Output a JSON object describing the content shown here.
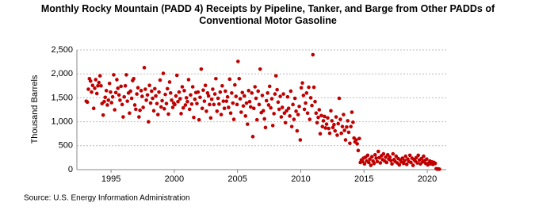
{
  "chart_data": {
    "type": "scatter",
    "title": "Monthly Rocky Mountain (PADD 4) Receipts by Pipeline, Tanker, and Barge from Other PADDs of Conventional Motor Gasoline",
    "y_label": "Thousand Barrels",
    "source": "Source: U.S. Energy Information Administration",
    "xlim": [
      1992.3,
      2021.5
    ],
    "xticks": [
      1995,
      2000,
      2005,
      2010,
      2015,
      2020
    ],
    "ylim": [
      0,
      2500
    ],
    "yticks": [
      0,
      500,
      {
        "value": 1000,
        "label": "1,000"
      },
      {
        "value": 1500,
        "label": "1,500"
      },
      {
        "value": 2000,
        "label": "2,000"
      },
      {
        "value": 2500,
        "label": "2,500"
      }
    ],
    "grid": true,
    "color": "#c00000",
    "x": [
      1993.04,
      1993.13,
      1993.21,
      1993.29,
      1993.38,
      1993.46,
      1993.54,
      1993.63,
      1993.71,
      1993.79,
      1993.88,
      1993.96,
      1994.04,
      1994.13,
      1994.21,
      1994.29,
      1994.38,
      1994.46,
      1994.54,
      1994.63,
      1994.71,
      1994.79,
      1994.88,
      1994.96,
      1995.04,
      1995.13,
      1995.21,
      1995.29,
      1995.38,
      1995.46,
      1995.54,
      1995.63,
      1995.71,
      1995.79,
      1995.88,
      1995.96,
      1996.04,
      1996.13,
      1996.21,
      1996.29,
      1996.38,
      1996.46,
      1996.54,
      1996.63,
      1996.71,
      1996.79,
      1996.88,
      1996.96,
      1997.04,
      1997.13,
      1997.21,
      1997.29,
      1997.38,
      1997.46,
      1997.54,
      1997.63,
      1997.71,
      1997.79,
      1997.88,
      1997.96,
      1998.04,
      1998.13,
      1998.21,
      1998.29,
      1998.38,
      1998.46,
      1998.54,
      1998.63,
      1998.71,
      1998.79,
      1998.88,
      1998.96,
      1999.04,
      1999.13,
      1999.21,
      1999.29,
      1999.38,
      1999.46,
      1999.54,
      1999.63,
      1999.71,
      1999.79,
      1999.88,
      1999.96,
      2000.04,
      2000.13,
      2000.21,
      2000.29,
      2000.38,
      2000.46,
      2000.54,
      2000.63,
      2000.71,
      2000.79,
      2000.88,
      2000.96,
      2001.04,
      2001.13,
      2001.21,
      2001.29,
      2001.38,
      2001.46,
      2001.54,
      2001.63,
      2001.71,
      2001.79,
      2001.88,
      2001.96,
      2002.04,
      2002.13,
      2002.21,
      2002.29,
      2002.38,
      2002.46,
      2002.54,
      2002.63,
      2002.71,
      2002.79,
      2002.88,
      2002.96,
      2003.04,
      2003.13,
      2003.21,
      2003.29,
      2003.38,
      2003.46,
      2003.54,
      2003.63,
      2003.71,
      2003.79,
      2003.88,
      2003.96,
      2004.04,
      2004.13,
      2004.21,
      2004.29,
      2004.38,
      2004.46,
      2004.54,
      2004.63,
      2004.71,
      2004.79,
      2004.88,
      2004.96,
      2005.04,
      2005.13,
      2005.21,
      2005.29,
      2005.38,
      2005.46,
      2005.54,
      2005.63,
      2005.71,
      2005.79,
      2005.88,
      2005.96,
      2006.04,
      2006.13,
      2006.21,
      2006.29,
      2006.38,
      2006.46,
      2006.54,
      2006.63,
      2006.71,
      2006.79,
      2006.88,
      2006.96,
      2007.04,
      2007.13,
      2007.21,
      2007.29,
      2007.38,
      2007.46,
      2007.54,
      2007.63,
      2007.71,
      2007.79,
      2007.88,
      2007.96,
      2008.04,
      2008.13,
      2008.21,
      2008.29,
      2008.38,
      2008.46,
      2008.54,
      2008.63,
      2008.71,
      2008.79,
      2008.88,
      2008.96,
      2009.04,
      2009.13,
      2009.21,
      2009.29,
      2009.38,
      2009.46,
      2009.54,
      2009.63,
      2009.71,
      2009.79,
      2009.88,
      2009.96,
      2010.04,
      2010.13,
      2010.21,
      2010.29,
      2010.38,
      2010.46,
      2010.54,
      2010.63,
      2010.71,
      2010.79,
      2010.88,
      2010.96,
      2011.04,
      2011.13,
      2011.21,
      2011.29,
      2011.38,
      2011.46,
      2011.54,
      2011.63,
      2011.71,
      2011.79,
      2011.88,
      2011.96,
      2012.04,
      2012.13,
      2012.21,
      2012.29,
      2012.38,
      2012.46,
      2012.54,
      2012.63,
      2012.71,
      2012.79,
      2012.88,
      2012.96,
      2013.04,
      2013.13,
      2013.21,
      2013.29,
      2013.38,
      2013.46,
      2013.54,
      2013.63,
      2013.71,
      2013.79,
      2013.88,
      2013.96,
      2014.04,
      2014.13,
      2014.21,
      2014.29,
      2014.38,
      2014.46,
      2014.54,
      2014.63,
      2014.71,
      2014.79,
      2014.88,
      2014.96,
      2015.04,
      2015.13,
      2015.21,
      2015.29,
      2015.38,
      2015.46,
      2015.54,
      2015.63,
      2015.71,
      2015.79,
      2015.88,
      2015.96,
      2016.04,
      2016.13,
      2016.21,
      2016.29,
      2016.38,
      2016.46,
      2016.54,
      2016.63,
      2016.71,
      2016.79,
      2016.88,
      2016.96,
      2017.04,
      2017.13,
      2017.21,
      2017.29,
      2017.38,
      2017.46,
      2017.54,
      2017.63,
      2017.71,
      2017.79,
      2017.88,
      2017.96,
      2018.04,
      2018.13,
      2018.21,
      2018.29,
      2018.38,
      2018.46,
      2018.54,
      2018.63,
      2018.71,
      2018.79,
      2018.88,
      2018.96,
      2019.04,
      2019.13,
      2019.21,
      2019.29,
      2019.38,
      2019.46,
      2019.54,
      2019.63,
      2019.71,
      2019.79,
      2019.88,
      2019.96,
      2020.04,
      2020.13,
      2020.21,
      2020.29,
      2020.38,
      2020.46,
      2020.54,
      2020.63,
      2020.71,
      2020.79,
      2020.88,
      2020.96
    ],
    "values": [
      1430,
      1410,
      1680,
      1900,
      1850,
      1620,
      1760,
      1280,
      1700,
      1880,
      1590,
      1750,
      1820,
      1960,
      1750,
      1380,
      1140,
      1420,
      1510,
      1650,
      1350,
      1450,
      1800,
      1620,
      1400,
      1520,
      1980,
      1250,
      1610,
      1880,
      1700,
      1560,
      1450,
      1740,
      1360,
      1100,
      1520,
      1750,
      1980,
      1430,
      1600,
      1180,
      1640,
      1490,
      1860,
      1900,
      1350,
      1260,
      1580,
      1710,
      1100,
      1240,
      1650,
      1530,
      1300,
      2130,
      1680,
      1450,
      1560,
      1000,
      1760,
      1390,
      1640,
      1490,
      1230,
      1690,
      1540,
      1380,
      1150,
      1620,
      1870,
      1310,
      1440,
      2010,
      1270,
      1570,
      1380,
      1690,
      1160,
      1830,
      1600,
      1450,
      1300,
      1390,
      1360,
      1540,
      1970,
      1420,
      1620,
      1480,
      1170,
      1730,
      1290,
      1650,
      1350,
      1500,
      1420,
      1880,
      1260,
      1560,
      1370,
      1730,
      1090,
      1470,
      1610,
      1380,
      1620,
      1040,
      1510,
      2100,
      1280,
      1660,
      1430,
      1760,
      1220,
      1600,
      1540,
      1360,
      1080,
      1470,
      1680,
      1360,
      1580,
      1900,
      1220,
      1490,
      1370,
      1620,
      1150,
      1750,
      1430,
      1280,
      1640,
      1430,
      1520,
      1300,
      1890,
      1180,
      1600,
      1390,
      1050,
      1770,
      1530,
      1360,
      2260,
      1900,
      1480,
      1200,
      1610,
      1330,
      1540,
      1120,
      1390,
      950,
      1650,
      1420,
      1310,
      1600,
      690,
      1280,
      1730,
      1490,
      1040,
      1640,
      1360,
      2100,
      1190,
      1550,
      1230,
      1060,
      880,
      1440,
      1600,
      1350,
      1740,
      1290,
      1480,
      920,
      1170,
      1580,
      1960,
      1670,
      1410,
      1260,
      1530,
      1100,
      1300,
      1580,
      1180,
      980,
      1230,
      1520,
      1280,
      1120,
      1640,
      900,
      1360,
      1050,
      1490,
      1220,
      810,
      1150,
      1320,
      620,
      1710,
      1810,
      1550,
      1260,
      1390,
      1600,
      1180,
      1720,
      1050,
      1500,
      1340,
      2400,
      1720,
      1420,
      1180,
      980,
      1090,
      1250,
      750,
      1130,
      900,
      1020,
      1110,
      870,
      950,
      1080,
      860,
      760,
      1230,
      1020,
      880,
      940,
      810,
      1100,
      720,
      960,
      1490,
      1050,
      760,
      900,
      1150,
      820,
      620,
      890,
      1020,
      780,
      550,
      900,
      1200,
      990,
      660,
      580,
      620,
      540,
      400,
      650,
      150,
      200,
      170,
      240,
      120,
      260,
      180,
      300,
      150,
      220,
      90,
      270,
      180,
      130,
      310,
      240,
      170,
      380,
      250,
      140,
      290,
      210,
      330,
      180,
      260,
      150,
      310,
      220,
      260,
      190,
      120,
      330,
      210,
      170,
      280,
      140,
      230,
      100,
      200,
      160,
      240,
      130,
      190,
      280,
      110,
      220,
      170,
      300,
      150,
      240,
      90,
      210,
      180,
      250,
      140,
      300,
      200,
      120,
      230,
      160,
      280,
      190,
      130,
      220,
      100,
      140,
      180,
      120,
      160,
      110,
      150,
      130,
      20,
      10,
      15,
      10
    ]
  }
}
